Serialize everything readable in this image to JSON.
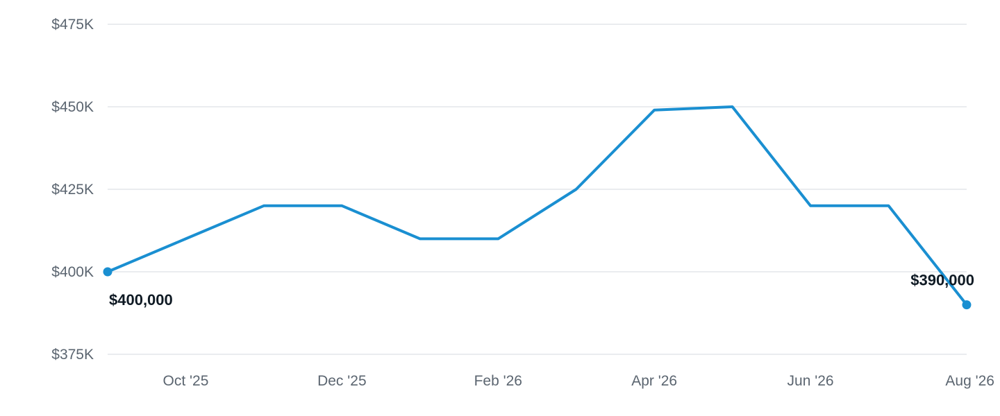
{
  "chart_data": {
    "type": "line",
    "title": "",
    "xlabel": "",
    "ylabel": "",
    "x": [
      "2025-09",
      "2025-10",
      "2025-11",
      "2025-12",
      "2026-01",
      "2026-02",
      "2026-03",
      "2026-04",
      "2026-05",
      "2026-06",
      "2026-07",
      "2026-08"
    ],
    "series": [
      {
        "values": [
          400000,
          410000,
          420000,
          420000,
          410000,
          410000,
          425000,
          449000,
          450000,
          420000,
          420000,
          390000
        ]
      }
    ],
    "ylim": [
      375000,
      475000
    ],
    "y_ticks": [
      {
        "value": 475000,
        "label": "$475K"
      },
      {
        "value": 450000,
        "label": "$450K"
      },
      {
        "value": 425000,
        "label": "$425K"
      },
      {
        "value": 400000,
        "label": "$400K"
      },
      {
        "value": 375000,
        "label": "$375K"
      }
    ],
    "x_ticks": [
      {
        "x": "2025-10",
        "label": "Oct '25"
      },
      {
        "x": "2025-12",
        "label": "Dec '25"
      },
      {
        "x": "2026-02",
        "label": "Feb '26"
      },
      {
        "x": "2026-04",
        "label": "Apr '26"
      },
      {
        "x": "2026-06",
        "label": "Jun '26"
      },
      {
        "x": "2026-08",
        "label": "Aug '26"
      }
    ],
    "data_labels": [
      {
        "x": "2025-09",
        "text": "$400,000"
      },
      {
        "x": "2026-08",
        "text": "$390,000"
      }
    ],
    "grid": true,
    "legend": "none",
    "colors": {
      "line": "#1a8fd1",
      "grid": "#e3e6ea",
      "tick_text": "#5b6570",
      "label_text": "#0f1a24"
    }
  }
}
